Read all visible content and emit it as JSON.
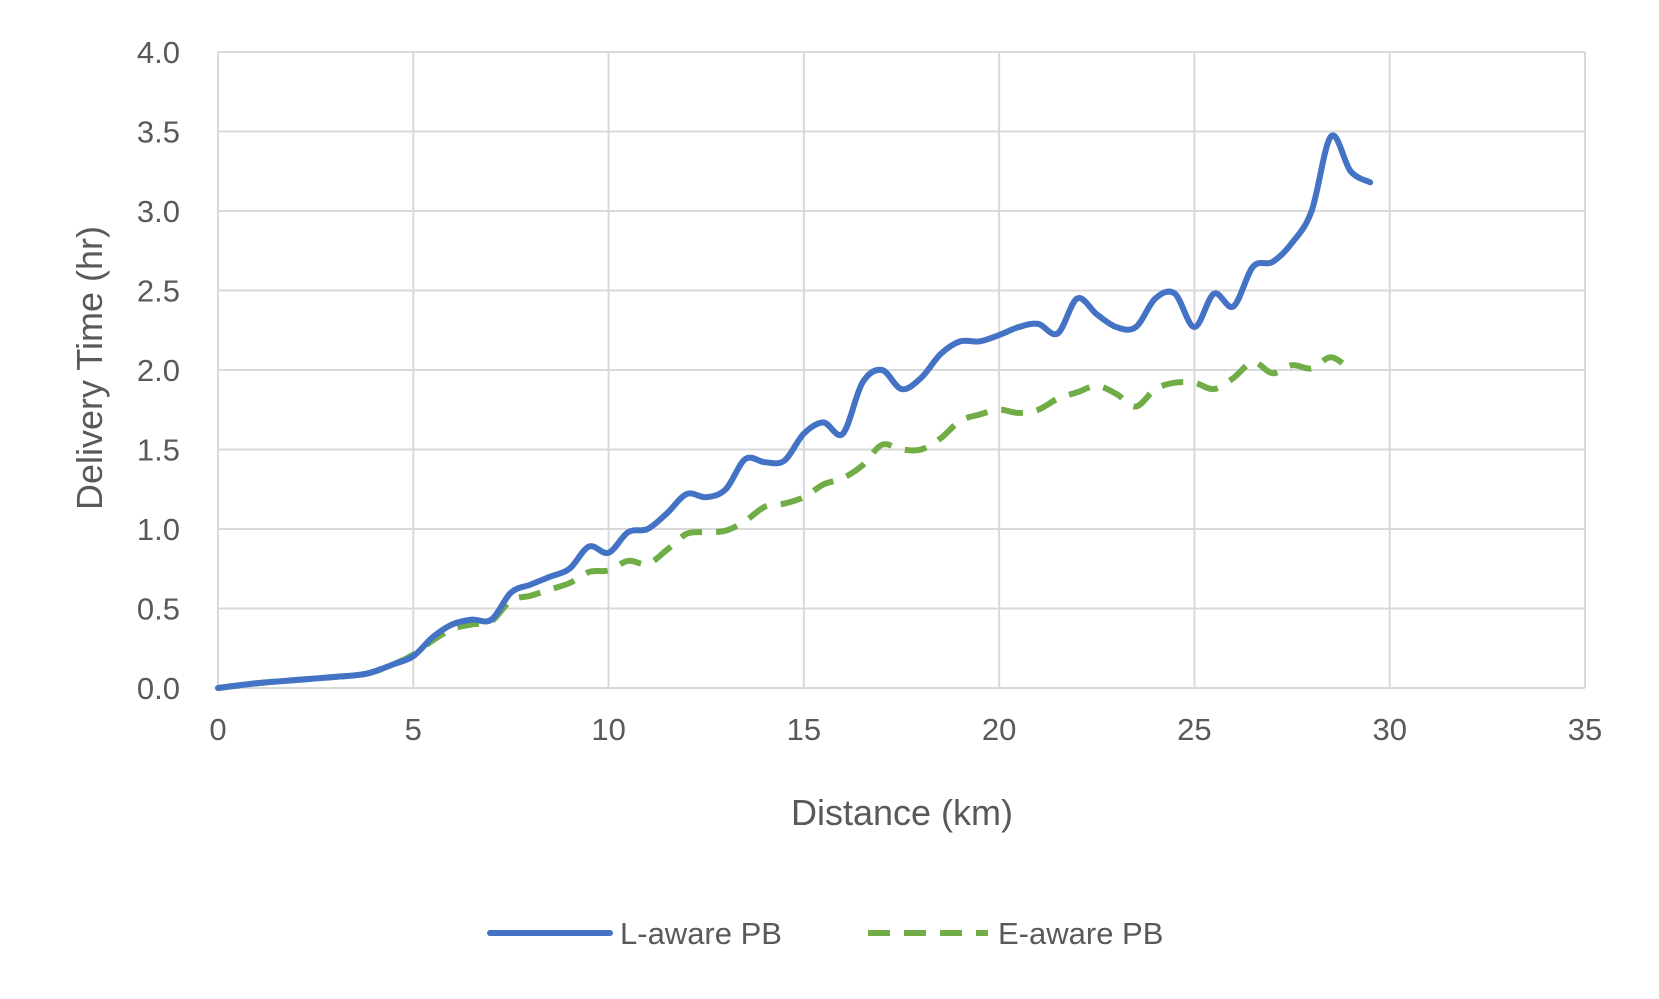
{
  "chart_data": {
    "type": "line",
    "title": "",
    "xlabel": "Distance (km)",
    "ylabel": "Delivery Time (hr)",
    "xlim": [
      0,
      35
    ],
    "ylim": [
      0,
      4
    ],
    "xticks": [
      0,
      5,
      10,
      15,
      20,
      25,
      30,
      35
    ],
    "yticks": [
      0,
      0.5,
      1,
      1.5,
      2,
      2.5,
      3,
      3.5,
      4
    ],
    "ytick_labels": [
      "0.0",
      "0.5",
      "1.0",
      "1.5",
      "2.0",
      "2.5",
      "3.0",
      "3.5",
      "4.0"
    ],
    "grid": true,
    "legend_position": "bottom",
    "series": [
      {
        "name": "L-aware PB",
        "color": "#4472C4",
        "style": "solid",
        "x": [
          0,
          1,
          2,
          3,
          3.8,
          4.5,
          5,
          5.5,
          6,
          6.5,
          7,
          7.5,
          8,
          8.5,
          9,
          9.5,
          10,
          10.5,
          11,
          11.5,
          12,
          12.5,
          13,
          13.5,
          14,
          14.5,
          15,
          15.5,
          16,
          16.5,
          17,
          17.5,
          18,
          18.5,
          19,
          19.5,
          20,
          20.5,
          21,
          21.5,
          22,
          22.5,
          23,
          23.5,
          24,
          24.5,
          25,
          25.5,
          26,
          26.5,
          27,
          27.5,
          28,
          28.5,
          29,
          29.5
        ],
        "y": [
          0,
          0.03,
          0.05,
          0.07,
          0.09,
          0.15,
          0.2,
          0.32,
          0.4,
          0.43,
          0.43,
          0.6,
          0.65,
          0.7,
          0.75,
          0.89,
          0.85,
          0.98,
          1.0,
          1.1,
          1.22,
          1.2,
          1.25,
          1.44,
          1.42,
          1.43,
          1.6,
          1.67,
          1.6,
          1.92,
          2.0,
          1.88,
          1.95,
          2.1,
          2.18,
          2.18,
          2.22,
          2.27,
          2.29,
          2.23,
          2.45,
          2.35,
          2.27,
          2.27,
          2.45,
          2.48,
          2.27,
          2.48,
          2.4,
          2.65,
          2.68,
          2.8,
          3.0,
          3.47,
          3.25,
          3.18
        ]
      },
      {
        "name": "E-aware PB",
        "color": "#70AD47",
        "style": "dashed",
        "x": [
          0,
          1,
          2,
          3,
          3.8,
          4.5,
          5,
          5.5,
          6,
          6.5,
          7,
          7.5,
          8,
          8.5,
          9,
          9.5,
          10,
          10.5,
          11,
          11.5,
          12,
          12.5,
          13,
          13.5,
          14,
          14.5,
          15,
          15.5,
          16,
          16.5,
          17,
          17.5,
          18,
          18.5,
          19,
          19.5,
          20,
          20.5,
          21,
          21.5,
          22,
          22.5,
          23,
          23.5,
          24,
          24.5,
          25,
          25.5,
          26,
          26.5,
          27,
          27.5,
          28,
          28.5,
          29
        ],
        "y": [
          0,
          0.03,
          0.05,
          0.07,
          0.09,
          0.15,
          0.21,
          0.3,
          0.37,
          0.4,
          0.42,
          0.55,
          0.58,
          0.62,
          0.66,
          0.73,
          0.74,
          0.8,
          0.78,
          0.87,
          0.97,
          0.98,
          0.99,
          1.05,
          1.14,
          1.16,
          1.2,
          1.28,
          1.32,
          1.4,
          1.53,
          1.5,
          1.5,
          1.57,
          1.68,
          1.72,
          1.75,
          1.73,
          1.75,
          1.82,
          1.86,
          1.9,
          1.85,
          1.77,
          1.88,
          1.92,
          1.92,
          1.88,
          1.95,
          2.05,
          1.98,
          2.03,
          2.01,
          2.08,
          2.0
        ]
      }
    ]
  }
}
